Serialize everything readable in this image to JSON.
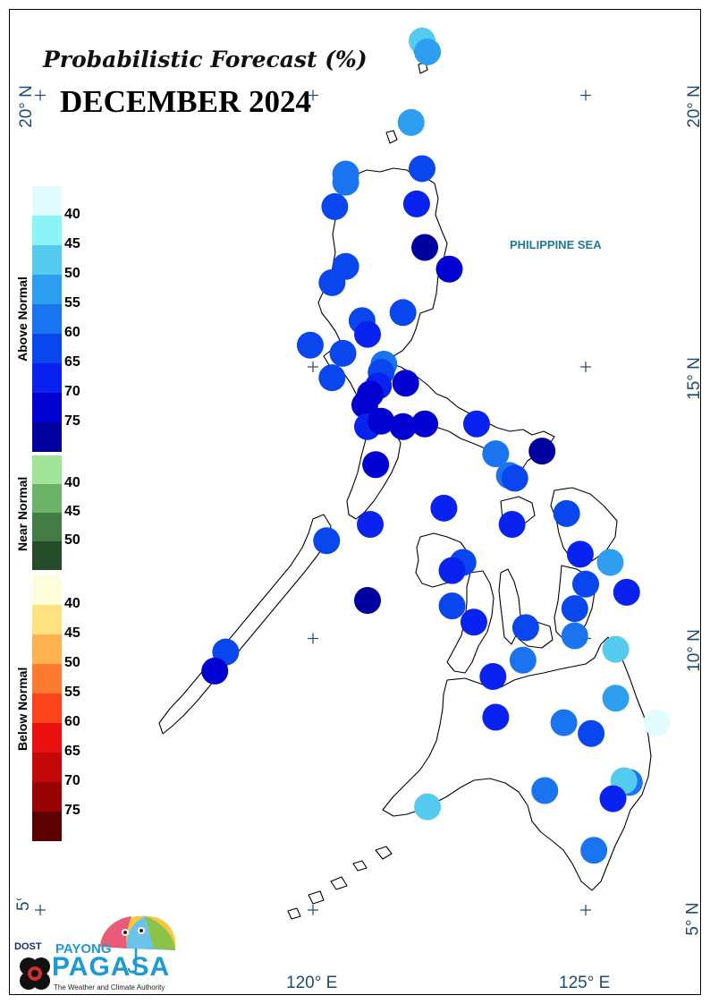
{
  "map": {
    "subtitle": "Probabilistic Forecast (%)",
    "title": "DECEMBER 2024",
    "sea_label": "PHILIPPINE SEA",
    "lat_labels": [
      "20° N",
      "15° N",
      "10° N",
      "5° N"
    ],
    "lon_labels": [
      "120° E",
      "125° E"
    ],
    "coastline_color": "#000000",
    "grid_marker_color": "#1e4b73"
  },
  "legend": {
    "groups": [
      {
        "name": "Above Normal",
        "colors": [
          "#e2fdfe",
          "#8cf3f7",
          "#55cbf0",
          "#2e9ff0",
          "#1a74ef",
          "#0a46ee",
          "#0a22f0",
          "#0000d0",
          "#0000a0"
        ],
        "ticks": [
          "40",
          "45",
          "50",
          "55",
          "60",
          "65",
          "70",
          "75"
        ]
      },
      {
        "name": "Near Normal",
        "colors": [
          "#a2e49a",
          "#6cb268",
          "#437c45",
          "#244c28"
        ],
        "ticks": [
          "40",
          "45",
          "50"
        ]
      },
      {
        "name": "Below Normal",
        "colors": [
          "#fefedc",
          "#fee281",
          "#fdb24f",
          "#fd7a30",
          "#fc441d",
          "#ec0f0f",
          "#c20808",
          "#980404",
          "#5c0000"
        ],
        "ticks": [
          "40",
          "45",
          "50",
          "55",
          "60",
          "65",
          "70",
          "75"
        ]
      }
    ]
  },
  "stations": [
    {
      "lon": 122.0,
      "lat": 21.0,
      "category": "Above Normal",
      "color": "#55cbf0"
    },
    {
      "lon": 122.1,
      "lat": 20.8,
      "category": "Above Normal",
      "color": "#2e9ff0"
    },
    {
      "lon": 121.8,
      "lat": 19.5,
      "category": "Above Normal",
      "color": "#2e9ff0"
    },
    {
      "lon": 122.0,
      "lat": 18.65,
      "category": "Above Normal",
      "color": "#0a46ee"
    },
    {
      "lon": 120.6,
      "lat": 18.55,
      "category": "Above Normal",
      "color": "#1a74ef"
    },
    {
      "lon": 120.6,
      "lat": 18.4,
      "category": "Above Normal",
      "color": "#1a74ef"
    },
    {
      "lon": 121.9,
      "lat": 18.0,
      "category": "Above Normal",
      "color": "#0a22f0"
    },
    {
      "lon": 120.4,
      "lat": 17.95,
      "category": "Above Normal",
      "color": "#0a46ee"
    },
    {
      "lon": 122.05,
      "lat": 17.2,
      "category": "Above Normal",
      "color": "#0000a0"
    },
    {
      "lon": 122.5,
      "lat": 16.8,
      "category": "Above Normal",
      "color": "#0000d0"
    },
    {
      "lon": 120.6,
      "lat": 16.85,
      "category": "Above Normal",
      "color": "#0a46ee"
    },
    {
      "lon": 120.35,
      "lat": 16.55,
      "category": "Above Normal",
      "color": "#0a46ee"
    },
    {
      "lon": 121.65,
      "lat": 16.0,
      "category": "Above Normal",
      "color": "#0a46ee"
    },
    {
      "lon": 120.9,
      "lat": 15.85,
      "category": "Above Normal",
      "color": "#0a46ee"
    },
    {
      "lon": 121.0,
      "lat": 15.6,
      "category": "Above Normal",
      "color": "#0a22f0"
    },
    {
      "lon": 119.95,
      "lat": 15.4,
      "category": "Above Normal",
      "color": "#0a46ee"
    },
    {
      "lon": 120.55,
      "lat": 15.25,
      "category": "Above Normal",
      "color": "#0a46ee"
    },
    {
      "lon": 121.3,
      "lat": 15.05,
      "category": "Above Normal",
      "color": "#1a74ef"
    },
    {
      "lon": 121.25,
      "lat": 14.9,
      "category": "Above Normal",
      "color": "#0a46ee"
    },
    {
      "lon": 120.35,
      "lat": 14.8,
      "category": "Above Normal",
      "color": "#0a46ee"
    },
    {
      "lon": 121.2,
      "lat": 14.65,
      "category": "Above Normal",
      "color": "#0a22f0"
    },
    {
      "lon": 121.05,
      "lat": 14.5,
      "category": "Above Normal",
      "color": "#0000d0"
    },
    {
      "lon": 121.7,
      "lat": 14.7,
      "category": "Above Normal",
      "color": "#0000d0"
    },
    {
      "lon": 120.95,
      "lat": 14.3,
      "category": "Above Normal",
      "color": "#0000d0"
    },
    {
      "lon": 121.0,
      "lat": 13.9,
      "category": "Above Normal",
      "color": "#0a22f0"
    },
    {
      "lon": 121.25,
      "lat": 14.0,
      "category": "Above Normal",
      "color": "#0000d0"
    },
    {
      "lon": 121.65,
      "lat": 13.9,
      "category": "Above Normal",
      "color": "#0000d0"
    },
    {
      "lon": 122.05,
      "lat": 13.95,
      "category": "Above Normal",
      "color": "#0000d0"
    },
    {
      "lon": 123.0,
      "lat": 13.95,
      "category": "Above Normal",
      "color": "#0a22f0"
    },
    {
      "lon": 121.15,
      "lat": 13.2,
      "category": "Above Normal",
      "color": "#0000d0"
    },
    {
      "lon": 123.35,
      "lat": 13.4,
      "category": "Above Normal",
      "color": "#1a74ef"
    },
    {
      "lon": 124.2,
      "lat": 13.45,
      "category": "Above Normal",
      "color": "#0000a0"
    },
    {
      "lon": 123.6,
      "lat": 13.0,
      "category": "Above Normal",
      "color": "#1a74ef"
    },
    {
      "lon": 123.7,
      "lat": 12.95,
      "category": "Above Normal",
      "color": "#0a46ee"
    },
    {
      "lon": 122.4,
      "lat": 12.4,
      "category": "Above Normal",
      "color": "#0a22f0"
    },
    {
      "lon": 121.05,
      "lat": 12.1,
      "category": "Above Normal",
      "color": "#0a22f0"
    },
    {
      "lon": 123.65,
      "lat": 12.1,
      "category": "Above Normal",
      "color": "#0a22f0"
    },
    {
      "lon": 124.65,
      "lat": 12.3,
      "category": "Above Normal",
      "color": "#0a46ee"
    },
    {
      "lon": 120.25,
      "lat": 11.8,
      "category": "Above Normal",
      "color": "#0a46ee"
    },
    {
      "lon": 124.9,
      "lat": 11.55,
      "category": "Above Normal",
      "color": "#0a22f0"
    },
    {
      "lon": 125.45,
      "lat": 11.4,
      "category": "Above Normal",
      "color": "#2e9ff0"
    },
    {
      "lon": 122.75,
      "lat": 11.4,
      "category": "Above Normal",
      "color": "#0a46ee"
    },
    {
      "lon": 122.55,
      "lat": 11.25,
      "category": "Above Normal",
      "color": "#0a22f0"
    },
    {
      "lon": 125.0,
      "lat": 11.0,
      "category": "Above Normal",
      "color": "#0a46ee"
    },
    {
      "lon": 125.75,
      "lat": 10.85,
      "category": "Above Normal",
      "color": "#0a22f0"
    },
    {
      "lon": 121.0,
      "lat": 10.7,
      "category": "Above Normal",
      "color": "#0000a0"
    },
    {
      "lon": 122.55,
      "lat": 10.6,
      "category": "Above Normal",
      "color": "#0a46ee"
    },
    {
      "lon": 124.8,
      "lat": 10.55,
      "category": "Above Normal",
      "color": "#0a46ee"
    },
    {
      "lon": 122.95,
      "lat": 10.3,
      "category": "Above Normal",
      "color": "#0a22f0"
    },
    {
      "lon": 123.9,
      "lat": 10.2,
      "category": "Above Normal",
      "color": "#0a46ee"
    },
    {
      "lon": 124.8,
      "lat": 10.05,
      "category": "Above Normal",
      "color": "#1a74ef"
    },
    {
      "lon": 125.55,
      "lat": 9.8,
      "category": "Above Normal",
      "color": "#55cbf0"
    },
    {
      "lon": 118.4,
      "lat": 9.75,
      "category": "Above Normal",
      "color": "#0a46ee"
    },
    {
      "lon": 123.85,
      "lat": 9.6,
      "category": "Above Normal",
      "color": "#1a74ef"
    },
    {
      "lon": 118.2,
      "lat": 9.4,
      "category": "Above Normal",
      "color": "#0000d0"
    },
    {
      "lon": 123.3,
      "lat": 9.3,
      "category": "Above Normal",
      "color": "#0a22f0"
    },
    {
      "lon": 125.55,
      "lat": 8.9,
      "category": "Above Normal",
      "color": "#2e9ff0"
    },
    {
      "lon": 126.3,
      "lat": 8.45,
      "category": "Above Normal",
      "color": "#e2fdfe"
    },
    {
      "lon": 123.35,
      "lat": 8.55,
      "category": "Above Normal",
      "color": "#0a22f0"
    },
    {
      "lon": 124.6,
      "lat": 8.45,
      "category": "Above Normal",
      "color": "#1a74ef"
    },
    {
      "lon": 125.1,
      "lat": 8.25,
      "category": "Above Normal",
      "color": "#0a46ee"
    },
    {
      "lon": 125.8,
      "lat": 7.35,
      "category": "Above Normal",
      "color": "#1a74ef"
    },
    {
      "lon": 125.7,
      "lat": 7.38,
      "category": "Above Normal",
      "color": "#55cbf0"
    },
    {
      "lon": 124.25,
      "lat": 7.2,
      "category": "Above Normal",
      "color": "#1a74ef"
    },
    {
      "lon": 125.5,
      "lat": 7.05,
      "category": "Above Normal",
      "color": "#0a22f0"
    },
    {
      "lon": 122.1,
      "lat": 6.9,
      "category": "Above Normal",
      "color": "#55cbf0"
    },
    {
      "lon": 125.15,
      "lat": 6.1,
      "category": "Above Normal",
      "color": "#1a74ef"
    }
  ],
  "logo": {
    "agency": "DOST",
    "brand_top": "PAYONG",
    "brand_main": "PAGASA",
    "tagline": "The Weather and Climate Authority"
  }
}
